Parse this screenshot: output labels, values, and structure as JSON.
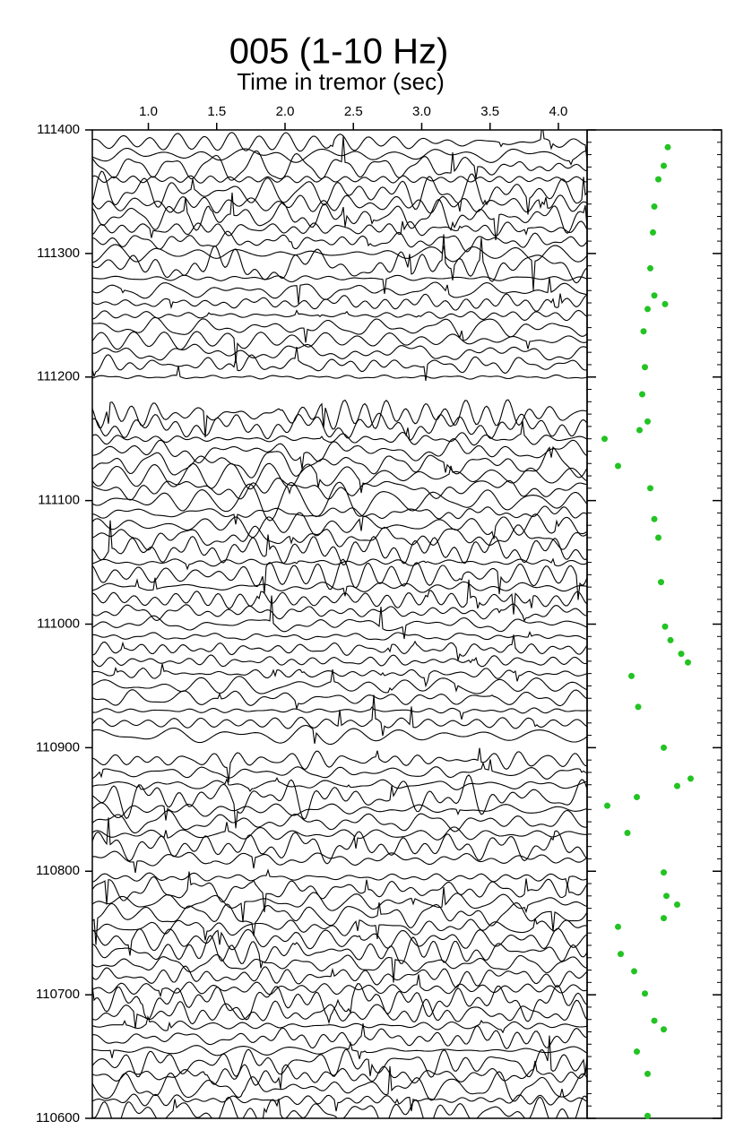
{
  "chart_data": {
    "type": "seismic",
    "title": "005 (1-10 Hz)",
    "x_label": "Time in tremor (sec)",
    "xlim": [
      0.59,
      4.21
    ],
    "xticks": [
      {
        "value": 1,
        "label": "1.0"
      },
      1.5,
      {
        "value": 2,
        "label": "2.0"
      },
      2.5,
      {
        "value": 3,
        "label": "3.0"
      },
      3.5,
      {
        "value": 4,
        "label": "4.0"
      }
    ],
    "ylim": [
      110600,
      111400
    ],
    "yticks": [
      110600,
      110700,
      110800,
      110900,
      111000,
      111100,
      111200,
      111300,
      111400
    ],
    "trace_color": "#000000",
    "traces": [
      110605,
      110615,
      110625,
      110635,
      110645,
      110655,
      110665,
      110675,
      110685,
      110695,
      110705,
      110715,
      110725,
      110735,
      110745,
      110755,
      110765,
      110775,
      110785,
      110795,
      110810,
      110820,
      110830,
      110840,
      110850,
      110860,
      110870,
      110880,
      110890,
      110910,
      110920,
      110930,
      110940,
      110950,
      110960,
      110970,
      110980,
      110990,
      111000,
      111010,
      111020,
      111030,
      111040,
      111050,
      111060,
      111070,
      111080,
      111090,
      111100,
      111110,
      111120,
      111130,
      111140,
      111150,
      111160,
      111170,
      111200,
      111210,
      111220,
      111230,
      111240,
      111250,
      111260,
      111270,
      111280,
      111290,
      111300,
      111310,
      111320,
      111330,
      111340,
      111350,
      111360,
      111370,
      111380,
      111390
    ],
    "x2lim": [
      0,
      100
    ],
    "series": [
      {
        "color": "#22c322",
        "x": [
          60,
          57,
          53,
          50,
          49,
          47,
          50,
          58,
          45,
          42,
          43,
          41,
          45,
          39,
          13,
          23,
          47,
          50,
          53,
          55,
          58,
          62,
          70,
          75,
          33,
          38,
          57,
          77,
          67,
          37,
          15,
          30,
          57,
          59,
          67,
          57,
          23,
          25,
          35,
          43,
          50,
          57,
          37,
          45,
          45
        ],
        "values": [
          111386,
          111371,
          111360,
          111338,
          111317,
          111288,
          111266,
          111259,
          111255,
          111237,
          111208,
          111186,
          111164,
          111157,
          111150,
          111128,
          111110,
          111085,
          111070,
          111034,
          110998,
          110987,
          110976,
          110969,
          110958,
          110933,
          110900,
          110875,
          110869,
          110860,
          110853,
          110831,
          110799,
          110780,
          110773,
          110762,
          110755,
          110733,
          110719,
          110701,
          110679,
          110672,
          110654,
          110636,
          110602
        ]
      }
    ]
  }
}
